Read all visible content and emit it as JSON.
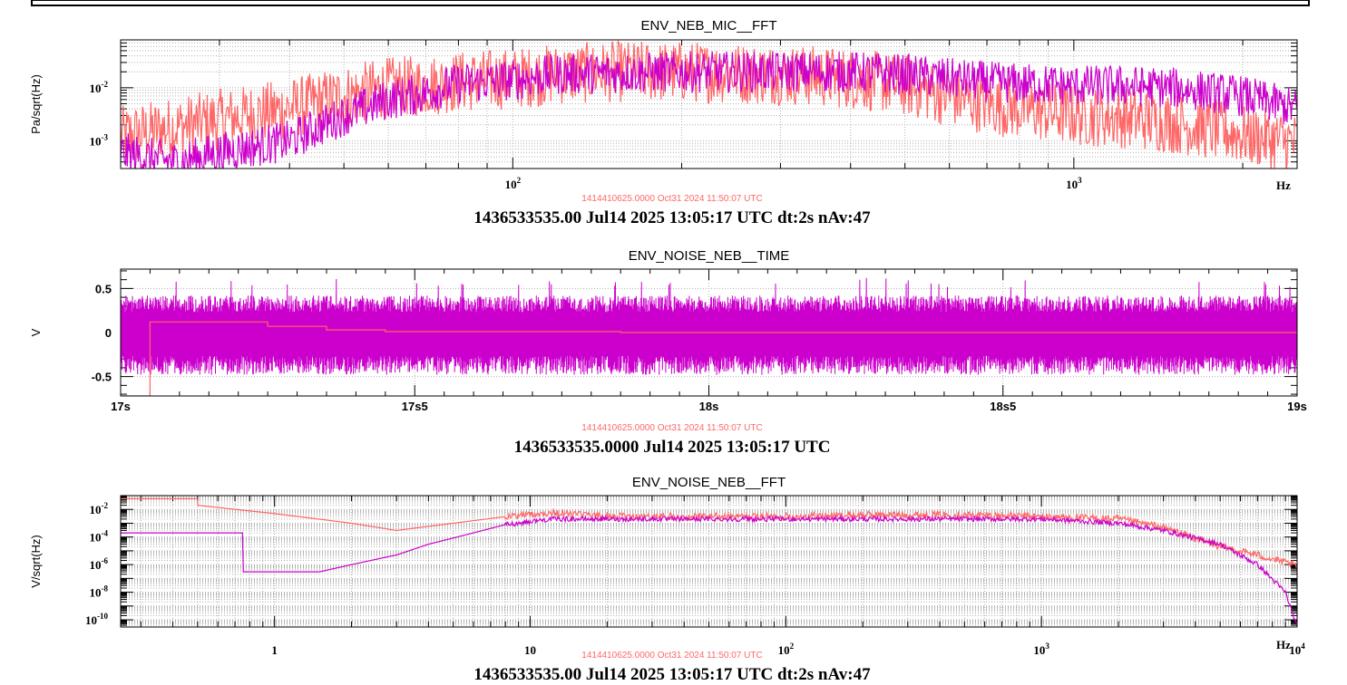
{
  "colors": {
    "reference": "#ff6666",
    "current": "#cc00cc",
    "grid": "#b0b0b0",
    "axis": "#000000"
  },
  "chart_data": [
    {
      "type": "line",
      "title": "ENV_NEB_MIC__FFT",
      "ylabel": "Pa/sqrt(Hz)",
      "xlabel": "Hz",
      "xscale": "log",
      "yscale": "log",
      "xlim": [
        20,
        2500
      ],
      "ylim": [
        0.0003,
        0.08
      ],
      "x_ticks": [
        {
          "v": 100,
          "label": "10",
          "exp": "2"
        },
        {
          "v": 1000,
          "label": "10",
          "exp": "3"
        }
      ],
      "y_ticks": [
        {
          "v": 0.01,
          "label": "10",
          "exp": "-2"
        },
        {
          "v": 0.001,
          "label": "10",
          "exp": "-3"
        }
      ],
      "reference_timestamp": "1414410625.0000 Oct31 2024 11:50:07 UTC",
      "timestamp": "1436533535.00 Jul14 2025 13:05:17 UTC dt:2s nAv:47",
      "series": [
        {
          "role": "reference",
          "x": [
            20,
            25,
            30,
            40,
            50,
            60,
            70,
            80,
            100,
            120,
            150,
            200,
            300,
            400,
            500,
            600,
            700,
            800,
            1000,
            1200,
            1500,
            2000,
            2500
          ],
          "y": [
            0.0012,
            0.0018,
            0.0025,
            0.004,
            0.007,
            0.01,
            0.011,
            0.013,
            0.015,
            0.018,
            0.02,
            0.02,
            0.018,
            0.015,
            0.011,
            0.007,
            0.005,
            0.004,
            0.003,
            0.0028,
            0.0022,
            0.0013,
            0.0009
          ]
        },
        {
          "role": "current",
          "x": [
            20,
            25,
            30,
            40,
            50,
            60,
            70,
            80,
            100,
            120,
            150,
            200,
            300,
            400,
            500,
            600,
            700,
            800,
            1000,
            1200,
            1500,
            2000,
            2500
          ],
          "y": [
            0.0006,
            0.0004,
            0.0006,
            0.001,
            0.003,
            0.006,
            0.008,
            0.012,
            0.014,
            0.018,
            0.019,
            0.02,
            0.02,
            0.02,
            0.018,
            0.015,
            0.013,
            0.012,
            0.011,
            0.011,
            0.01,
            0.007,
            0.004
          ]
        }
      ]
    },
    {
      "type": "line",
      "title": "ENV_NOISE_NEB__TIME",
      "ylabel": "V",
      "xscale": "linear",
      "yscale": "linear",
      "xlim": [
        17,
        19
      ],
      "ylim": [
        -0.72,
        0.72
      ],
      "x_ticks": [
        {
          "v": 17,
          "label": "17s"
        },
        {
          "v": 17.5,
          "label": "17s5"
        },
        {
          "v": 18,
          "label": "18s"
        },
        {
          "v": 18.5,
          "label": "18s5"
        },
        {
          "v": 19,
          "label": "19s"
        }
      ],
      "y_ticks": [
        {
          "v": 0.5,
          "label": "0.5"
        },
        {
          "v": 0,
          "label": "0"
        },
        {
          "v": -0.5,
          "label": "-0.5"
        }
      ],
      "reference_timestamp": "1414410625.0000 Oct31 2024 11:50:07 UTC",
      "timestamp": "1436533535.0000 Jul14 2025 13:05:17 UTC",
      "noise_band": {
        "min": -0.48,
        "max": 0.42,
        "peak": 0.62
      },
      "series": [
        {
          "role": "reference",
          "x": [
            17,
            17.05,
            17.05,
            17.25,
            17.25,
            17.35,
            17.35,
            17.45,
            17.45,
            17.85,
            17.85,
            19
          ],
          "y": [
            -0.72,
            -0.72,
            0.12,
            0.12,
            0.07,
            0.07,
            0.03,
            0.03,
            0.01,
            0.01,
            0.0,
            0.0
          ]
        }
      ]
    },
    {
      "type": "line",
      "title": "ENV_NOISE_NEB__FFT",
      "ylabel": "V/sqrt(Hz)",
      "xlabel": "Hz",
      "xscale": "log",
      "yscale": "log",
      "xlim": [
        0.25,
        10000
      ],
      "ylim": [
        3e-11,
        0.1
      ],
      "x_ticks": [
        {
          "v": 1,
          "label": "1"
        },
        {
          "v": 10,
          "label": "10"
        },
        {
          "v": 100,
          "label": "10",
          "exp": "2"
        },
        {
          "v": 1000,
          "label": "10",
          "exp": "3"
        },
        {
          "v": 10000,
          "label": "10",
          "exp": "4"
        }
      ],
      "y_ticks": [
        {
          "v": 0.01,
          "label": "10",
          "exp": "-2"
        },
        {
          "v": 0.0001,
          "label": "10",
          "exp": "-4"
        },
        {
          "v": 1e-06,
          "label": "10",
          "exp": "-6"
        },
        {
          "v": 1e-08,
          "label": "10",
          "exp": "-8"
        },
        {
          "v": 1e-10,
          "label": "10",
          "exp": "-10"
        }
      ],
      "reference_timestamp": "1414410625.0000 Oct31 2024 11:50:07 UTC",
      "timestamp": "1436533535.00 Jul14 2025 13:05:17 UTC dt:2s nAv:47",
      "series": [
        {
          "role": "reference",
          "x": [
            0.25,
            0.5,
            0.5,
            1,
            2,
            3,
            5,
            8,
            12,
            20,
            50,
            100,
            200,
            500,
            1000,
            2000,
            3000,
            5000,
            7000,
            10000
          ],
          "y": [
            0.06,
            0.06,
            0.02,
            0.005,
            0.001,
            0.0003,
            0.001,
            0.003,
            0.006,
            0.003,
            0.003,
            0.003,
            0.004,
            0.004,
            0.003,
            0.002,
            0.0005,
            2e-05,
            5e-06,
            8e-07
          ]
        },
        {
          "role": "current",
          "x": [
            0.25,
            0.75,
            0.75,
            1.5,
            2,
            3,
            4,
            6,
            8,
            12,
            20,
            50,
            100,
            200,
            500,
            1000,
            2000,
            3000,
            5000,
            7000,
            9000,
            10000
          ],
          "y": [
            0.0002,
            0.0002,
            3e-07,
            3e-07,
            1e-06,
            5e-06,
            3e-05,
            0.0002,
            0.0008,
            0.002,
            0.002,
            0.002,
            0.002,
            0.002,
            0.002,
            0.002,
            0.001,
            0.0003,
            3e-05,
            1e-06,
            1e-08,
            3e-11
          ]
        }
      ]
    }
  ]
}
